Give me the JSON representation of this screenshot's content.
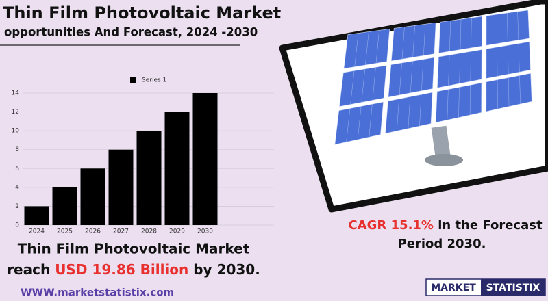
{
  "header": {
    "title": "Thin Film Photovoltaic Market",
    "subtitle": "opportunities And Forecast, 2024 -2030"
  },
  "chart_data": {
    "type": "bar",
    "categories": [
      "2024",
      "2025",
      "2026",
      "2027",
      "2028",
      "2029",
      "2030"
    ],
    "series": [
      {
        "name": "Series 1",
        "color": "#000000",
        "values": [
          2,
          4,
          6,
          8,
          10,
          12,
          14
        ]
      }
    ],
    "ylim": [
      0,
      14
    ],
    "yticks": [
      0,
      2,
      4,
      6,
      8,
      10,
      12,
      14
    ],
    "grid": true,
    "legend": "top"
  },
  "summary": {
    "line1": "Thin Film Photovoltaic Market",
    "reach": "reach",
    "amount": "USD 19.86 Billion",
    "by": "by 2030."
  },
  "cagr": {
    "label": "CAGR",
    "value": "15.1%",
    "rest": "in the  Forecast",
    "period": "Period  2030."
  },
  "footer": {
    "url": "WWW.marketstatistix.com",
    "logo_left": "MARKET",
    "logo_right": "STATISTIX"
  }
}
